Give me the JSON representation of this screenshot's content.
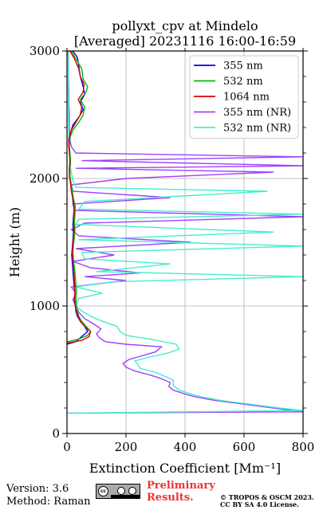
{
  "chart_data": {
    "type": "line",
    "title_line1": "pollyxt_cpv at Mindelo",
    "title_line2": "[Averaged] 20231116 16:00-16:59",
    "xlabel": "Extinction Coefficient [Mm⁻¹]",
    "ylabel": "Height (m)",
    "xlim": [
      0,
      800
    ],
    "ylim": [
      0,
      3000
    ],
    "xticks": [
      0,
      200,
      400,
      600,
      800
    ],
    "yticks": [
      0,
      1000,
      2000,
      3000
    ],
    "grid": true,
    "legend_position": "top-right",
    "series": [
      {
        "name": "355 nm",
        "color": "#0000ee",
        "points": [
          [
            0,
            700
          ],
          [
            30,
            720
          ],
          [
            50,
            760
          ],
          [
            70,
            800
          ],
          [
            60,
            840
          ],
          [
            45,
            880
          ],
          [
            35,
            920
          ],
          [
            30,
            960
          ],
          [
            28,
            1000
          ],
          [
            25,
            1040
          ],
          [
            27,
            1100
          ],
          [
            24,
            1160
          ],
          [
            22,
            1220
          ],
          [
            20,
            1280
          ],
          [
            18,
            1340
          ],
          [
            16,
            1400
          ],
          [
            18,
            1460
          ],
          [
            20,
            1520
          ],
          [
            22,
            1580
          ],
          [
            20,
            1640
          ],
          [
            22,
            1700
          ],
          [
            24,
            1760
          ],
          [
            20,
            1820
          ],
          [
            18,
            1880
          ],
          [
            15,
            1940
          ],
          [
            10,
            2000
          ],
          [
            8,
            2060
          ],
          [
            12,
            2120
          ],
          [
            10,
            2180
          ],
          [
            8,
            2240
          ],
          [
            6,
            2300
          ],
          [
            12,
            2360
          ],
          [
            20,
            2420
          ],
          [
            40,
            2480
          ],
          [
            55,
            2540
          ],
          [
            45,
            2600
          ],
          [
            60,
            2660
          ],
          [
            55,
            2720
          ],
          [
            45,
            2800
          ],
          [
            40,
            2880
          ],
          [
            35,
            2950
          ],
          [
            20,
            3000
          ]
        ]
      },
      {
        "name": "532 nm",
        "color": "#00bb00",
        "points": [
          [
            0,
            720
          ],
          [
            40,
            740
          ],
          [
            70,
            770
          ],
          [
            80,
            800
          ],
          [
            65,
            840
          ],
          [
            50,
            880
          ],
          [
            40,
            920
          ],
          [
            35,
            960
          ],
          [
            32,
            1000
          ],
          [
            30,
            1060
          ],
          [
            32,
            1120
          ],
          [
            30,
            1180
          ],
          [
            28,
            1240
          ],
          [
            25,
            1300
          ],
          [
            22,
            1360
          ],
          [
            20,
            1420
          ],
          [
            22,
            1480
          ],
          [
            25,
            1540
          ],
          [
            27,
            1600
          ],
          [
            25,
            1660
          ],
          [
            27,
            1720
          ],
          [
            28,
            1780
          ],
          [
            22,
            1840
          ],
          [
            18,
            1900
          ],
          [
            14,
            1960
          ],
          [
            10,
            2020
          ],
          [
            10,
            2080
          ],
          [
            12,
            2140
          ],
          [
            10,
            2200
          ],
          [
            8,
            2260
          ],
          [
            10,
            2320
          ],
          [
            20,
            2380
          ],
          [
            40,
            2440
          ],
          [
            55,
            2500
          ],
          [
            60,
            2560
          ],
          [
            45,
            2620
          ],
          [
            65,
            2680
          ],
          [
            70,
            2720
          ],
          [
            55,
            2780
          ],
          [
            50,
            2860
          ],
          [
            30,
            2940
          ],
          [
            15,
            3000
          ]
        ]
      },
      {
        "name": "1064 nm",
        "color": "#dd0000",
        "points": [
          [
            0,
            710
          ],
          [
            50,
            730
          ],
          [
            75,
            760
          ],
          [
            80,
            800
          ],
          [
            60,
            840
          ],
          [
            45,
            880
          ],
          [
            38,
            920
          ],
          [
            32,
            960
          ],
          [
            28,
            1000
          ],
          [
            26,
            1060
          ],
          [
            27,
            1120
          ],
          [
            26,
            1180
          ],
          [
            24,
            1240
          ],
          [
            22,
            1300
          ],
          [
            20,
            1360
          ],
          [
            18,
            1420
          ],
          [
            20,
            1480
          ],
          [
            22,
            1540
          ],
          [
            24,
            1600
          ],
          [
            22,
            1660
          ],
          [
            24,
            1720
          ],
          [
            24,
            1780
          ],
          [
            20,
            1840
          ],
          [
            15,
            1900
          ],
          [
            12,
            1960
          ],
          [
            8,
            2020
          ],
          [
            8,
            2080
          ],
          [
            10,
            2140
          ],
          [
            8,
            2200
          ],
          [
            6,
            2260
          ],
          [
            8,
            2320
          ],
          [
            15,
            2380
          ],
          [
            30,
            2440
          ],
          [
            45,
            2500
          ],
          [
            50,
            2560
          ],
          [
            38,
            2620
          ],
          [
            55,
            2680
          ],
          [
            58,
            2740
          ],
          [
            45,
            2800
          ],
          [
            40,
            2860
          ],
          [
            25,
            2940
          ],
          [
            10,
            3000
          ]
        ]
      },
      {
        "name": "355 nm (NR)",
        "color": "#a040ff",
        "points": [
          [
            0,
            160
          ],
          [
            800,
            170
          ],
          [
            700,
            200
          ],
          [
            600,
            230
          ],
          [
            500,
            260
          ],
          [
            430,
            290
          ],
          [
            400,
            310
          ],
          [
            360,
            340
          ],
          [
            345,
            370
          ],
          [
            350,
            400
          ],
          [
            320,
            430
          ],
          [
            280,
            460
          ],
          [
            230,
            490
          ],
          [
            200,
            520
          ],
          [
            190,
            550
          ],
          [
            210,
            580
          ],
          [
            240,
            600
          ],
          [
            300,
            640
          ],
          [
            320,
            680
          ],
          [
            200,
            700
          ],
          [
            130,
            720
          ],
          [
            110,
            750
          ],
          [
            100,
            780
          ],
          [
            115,
            820
          ],
          [
            90,
            860
          ],
          [
            60,
            900
          ],
          [
            40,
            950
          ],
          [
            30,
            1000
          ],
          [
            20,
            1050
          ],
          [
            30,
            1100
          ],
          [
            15,
            1150
          ],
          [
            200,
            1200
          ],
          [
            60,
            1230
          ],
          [
            250,
            1260
          ],
          [
            80,
            1300
          ],
          [
            20,
            1350
          ],
          [
            160,
            1400
          ],
          [
            30,
            1450
          ],
          [
            420,
            1500
          ],
          [
            40,
            1550
          ],
          [
            15,
            1600
          ],
          [
            60,
            1650
          ],
          [
            800,
            1700
          ],
          [
            30,
            1750
          ],
          [
            20,
            1800
          ],
          [
            350,
            1850
          ],
          [
            20,
            1900
          ],
          [
            15,
            1950
          ],
          [
            200,
            2000
          ],
          [
            700,
            2050
          ],
          [
            30,
            2080
          ],
          [
            800,
            2100
          ],
          [
            50,
            2140
          ],
          [
            800,
            2170
          ],
          [
            30,
            2200
          ],
          [
            15,
            2250
          ],
          [
            10,
            2300
          ],
          [
            8,
            2400
          ],
          [
            8,
            2500
          ],
          [
            6,
            2600
          ],
          [
            6,
            2700
          ],
          [
            5,
            2800
          ],
          [
            5,
            2900
          ],
          [
            4,
            3000
          ]
        ]
      },
      {
        "name": "532 nm (NR)",
        "color": "#44eecc",
        "points": [
          [
            0,
            160
          ],
          [
            800,
            180
          ],
          [
            720,
            200
          ],
          [
            620,
            230
          ],
          [
            520,
            260
          ],
          [
            450,
            290
          ],
          [
            420,
            310
          ],
          [
            380,
            340
          ],
          [
            360,
            380
          ],
          [
            360,
            420
          ],
          [
            330,
            450
          ],
          [
            300,
            480
          ],
          [
            250,
            510
          ],
          [
            240,
            540
          ],
          [
            230,
            570
          ],
          [
            280,
            600
          ],
          [
            340,
            630
          ],
          [
            380,
            660
          ],
          [
            370,
            700
          ],
          [
            280,
            740
          ],
          [
            200,
            770
          ],
          [
            180,
            800
          ],
          [
            170,
            840
          ],
          [
            120,
            880
          ],
          [
            80,
            920
          ],
          [
            50,
            960
          ],
          [
            30,
            1000
          ],
          [
            40,
            1060
          ],
          [
            120,
            1100
          ],
          [
            30,
            1150
          ],
          [
            160,
            1190
          ],
          [
            800,
            1230
          ],
          [
            100,
            1270
          ],
          [
            350,
            1330
          ],
          [
            60,
            1370
          ],
          [
            50,
            1420
          ],
          [
            800,
            1470
          ],
          [
            40,
            1520
          ],
          [
            700,
            1580
          ],
          [
            30,
            1640
          ],
          [
            40,
            1680
          ],
          [
            800,
            1720
          ],
          [
            40,
            1760
          ],
          [
            60,
            1820
          ],
          [
            680,
            1900
          ],
          [
            30,
            1930
          ],
          [
            20,
            1980
          ],
          [
            15,
            2050
          ],
          [
            10,
            2100
          ],
          [
            8,
            2200
          ],
          [
            6,
            2300
          ],
          [
            5,
            2500
          ],
          [
            4,
            2700
          ],
          [
            4,
            2900
          ],
          [
            3,
            3000
          ]
        ]
      }
    ]
  },
  "footer": {
    "version": "Version: 3.6",
    "method": "Method: Raman",
    "prelim_line1": "Preliminary",
    "prelim_line2": "Results.",
    "copyright_line1": "© TROPOS & OSCM 2023.",
    "copyright_line2": "CC BY SA 4.0 License.",
    "badge_cc": "cc"
  }
}
